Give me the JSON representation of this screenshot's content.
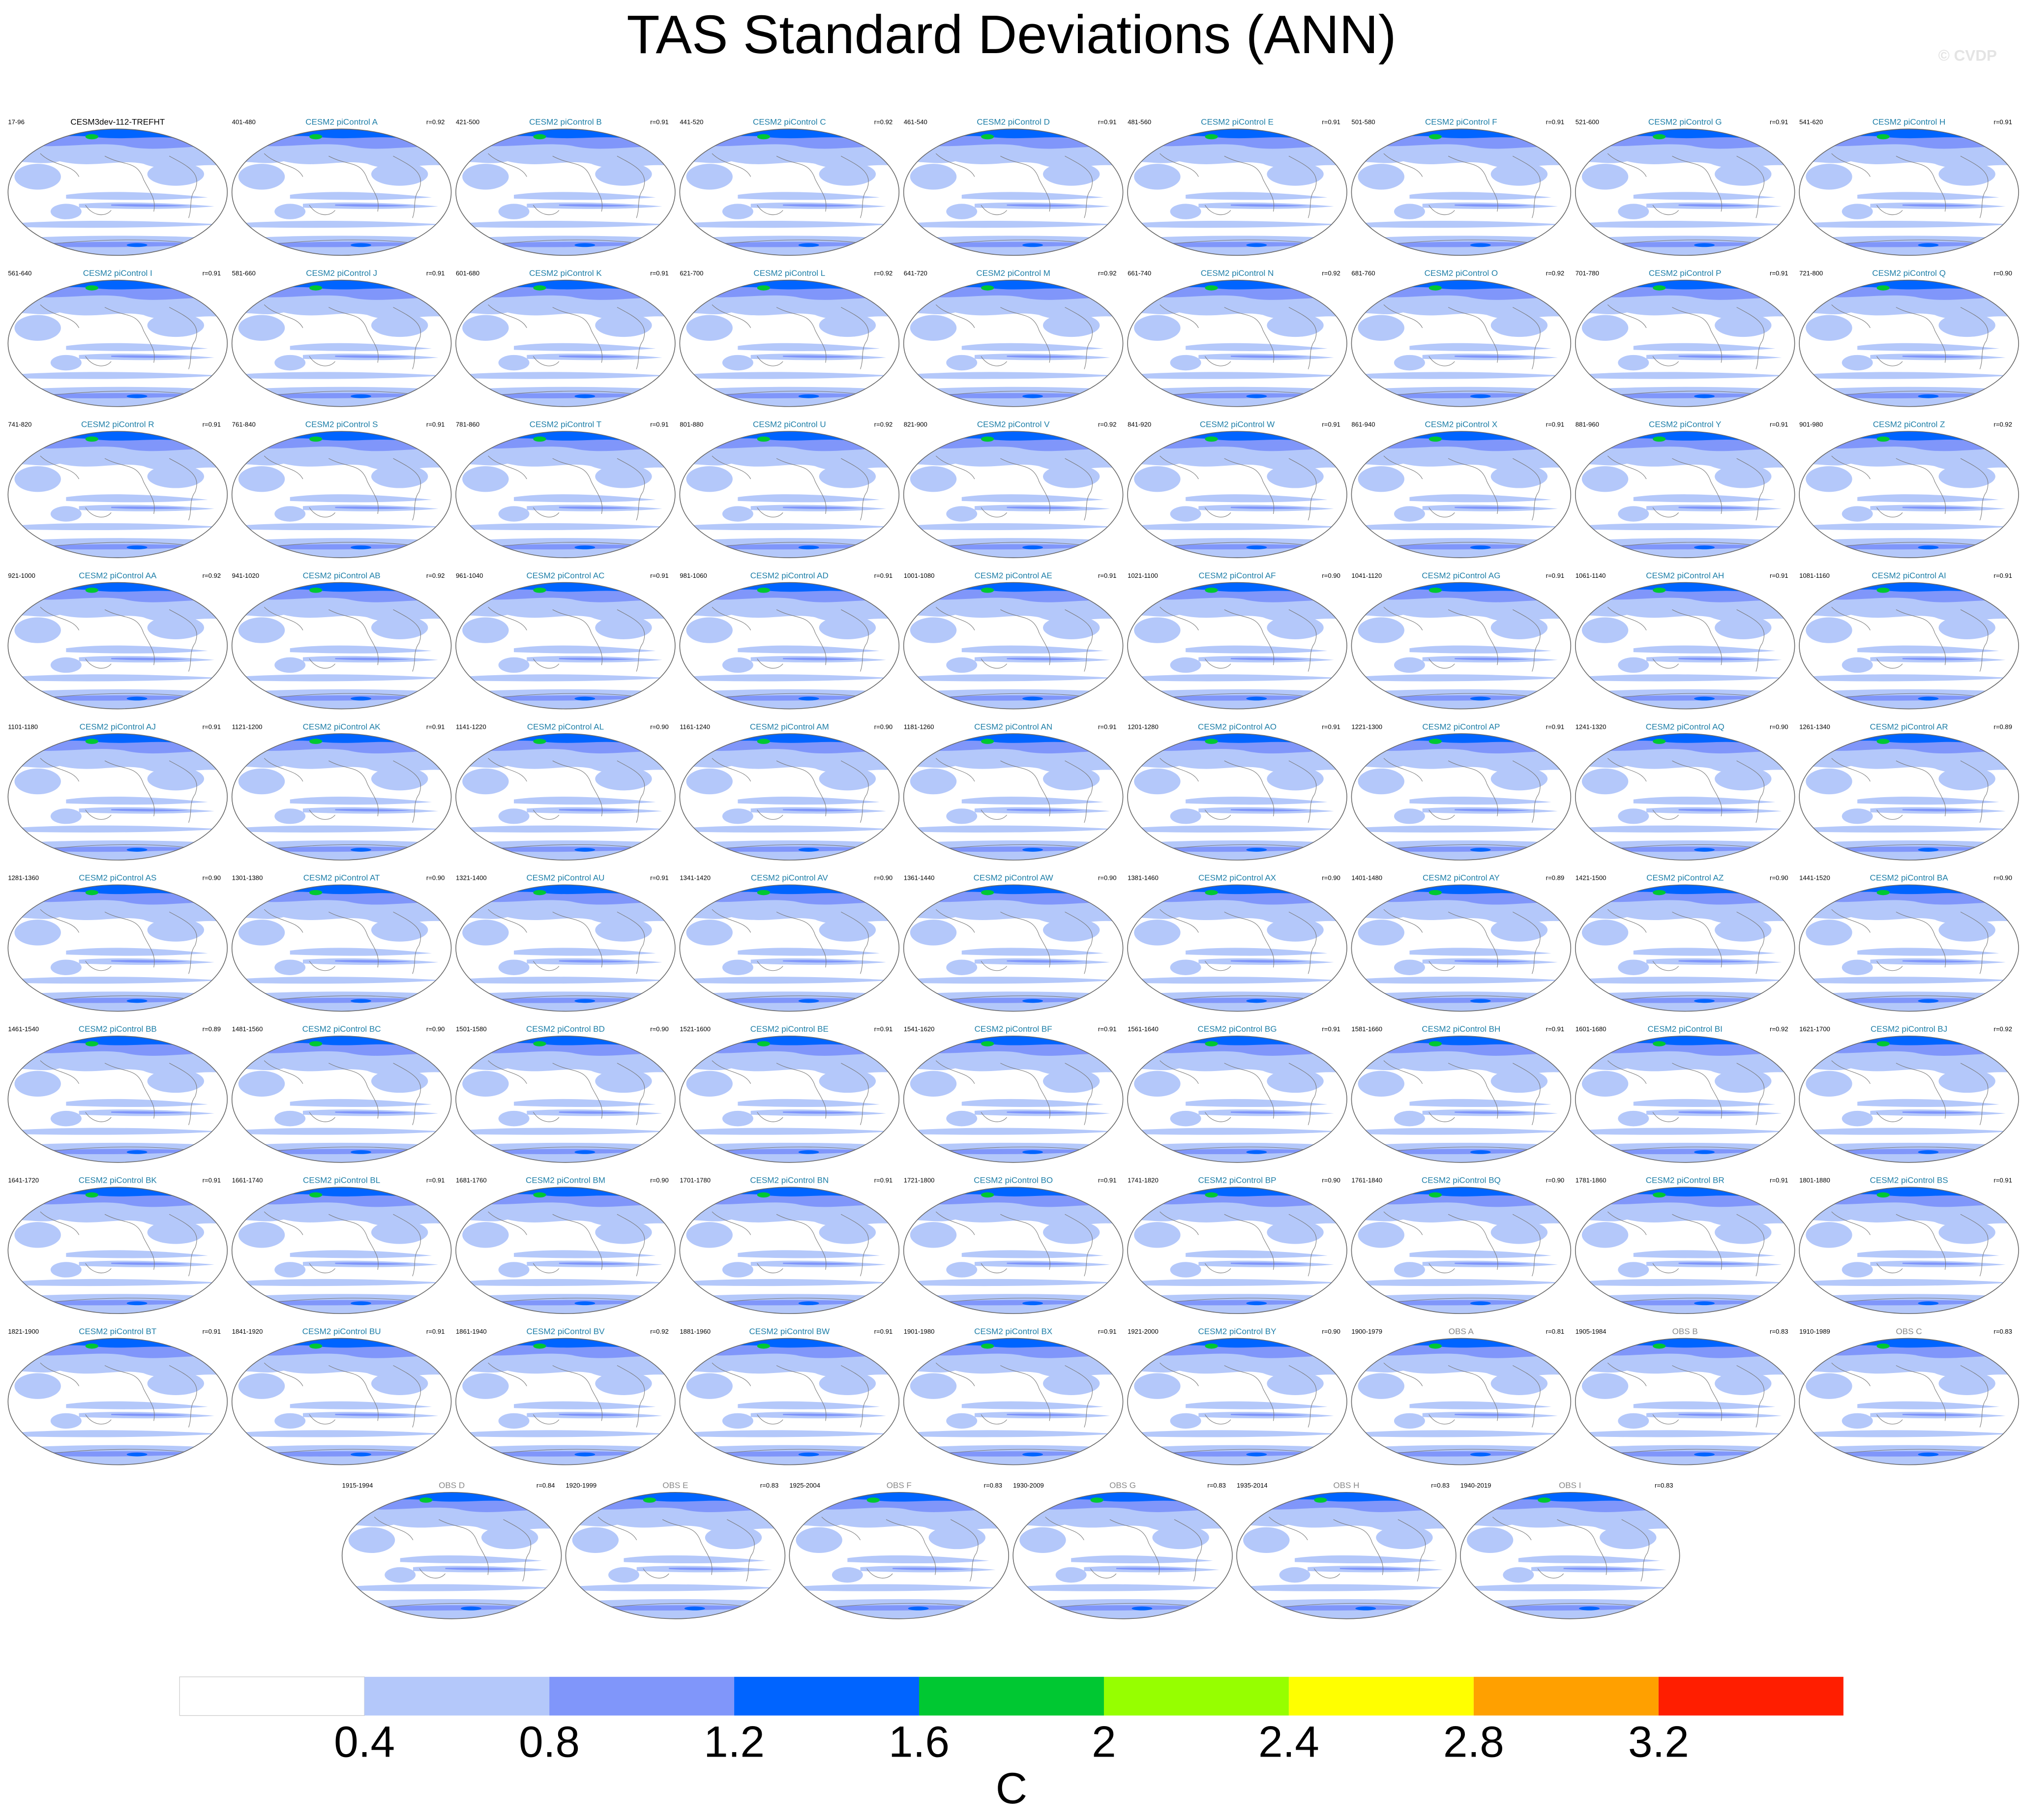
{
  "title": "TAS Standard Deviations (ANN)",
  "credit": "© CVDP",
  "reference": [
    "17-96",
    "CESM3dev-112-TREFHT"
  ],
  "models": [
    [
      "401-480",
      "CESM2 piControl A",
      "r=0.92"
    ],
    [
      "421-500",
      "CESM2 piControl B",
      "r=0.91"
    ],
    [
      "441-520",
      "CESM2 piControl C",
      "r=0.92"
    ],
    [
      "461-540",
      "CESM2 piControl D",
      "r=0.91"
    ],
    [
      "481-560",
      "CESM2 piControl E",
      "r=0.91"
    ],
    [
      "501-580",
      "CESM2 piControl F",
      "r=0.91"
    ],
    [
      "521-600",
      "CESM2 piControl G",
      "r=0.91"
    ],
    [
      "541-620",
      "CESM2 piControl H",
      "r=0.91"
    ],
    [
      "561-640",
      "CESM2 piControl I",
      "r=0.91"
    ],
    [
      "581-660",
      "CESM2 piControl J",
      "r=0.91"
    ],
    [
      "601-680",
      "CESM2 piControl K",
      "r=0.91"
    ],
    [
      "621-700",
      "CESM2 piControl L",
      "r=0.92"
    ],
    [
      "641-720",
      "CESM2 piControl M",
      "r=0.92"
    ],
    [
      "661-740",
      "CESM2 piControl N",
      "r=0.92"
    ],
    [
      "681-760",
      "CESM2 piControl O",
      "r=0.92"
    ],
    [
      "701-780",
      "CESM2 piControl P",
      "r=0.91"
    ],
    [
      "721-800",
      "CESM2 piControl Q",
      "r=0.90"
    ],
    [
      "741-820",
      "CESM2 piControl R",
      "r=0.91"
    ],
    [
      "761-840",
      "CESM2 piControl S",
      "r=0.91"
    ],
    [
      "781-860",
      "CESM2 piControl T",
      "r=0.91"
    ],
    [
      "801-880",
      "CESM2 piControl U",
      "r=0.92"
    ],
    [
      "821-900",
      "CESM2 piControl V",
      "r=0.92"
    ],
    [
      "841-920",
      "CESM2 piControl W",
      "r=0.91"
    ],
    [
      "861-940",
      "CESM2 piControl X",
      "r=0.91"
    ],
    [
      "881-960",
      "CESM2 piControl Y",
      "r=0.91"
    ],
    [
      "901-980",
      "CESM2 piControl Z",
      "r=0.92"
    ],
    [
      "921-1000",
      "CESM2 piControl AA",
      "r=0.92"
    ],
    [
      "941-1020",
      "CESM2 piControl AB",
      "r=0.92"
    ],
    [
      "961-1040",
      "CESM2 piControl AC",
      "r=0.91"
    ],
    [
      "981-1060",
      "CESM2 piControl AD",
      "r=0.91"
    ],
    [
      "1001-1080",
      "CESM2 piControl AE",
      "r=0.91"
    ],
    [
      "1021-1100",
      "CESM2 piControl AF",
      "r=0.90"
    ],
    [
      "1041-1120",
      "CESM2 piControl AG",
      "r=0.91"
    ],
    [
      "1061-1140",
      "CESM2 piControl AH",
      "r=0.91"
    ],
    [
      "1081-1160",
      "CESM2 piControl AI",
      "r=0.91"
    ],
    [
      "1101-1180",
      "CESM2 piControl AJ",
      "r=0.91"
    ],
    [
      "1121-1200",
      "CESM2 piControl AK",
      "r=0.91"
    ],
    [
      "1141-1220",
      "CESM2 piControl AL",
      "r=0.90"
    ],
    [
      "1161-1240",
      "CESM2 piControl AM",
      "r=0.90"
    ],
    [
      "1181-1260",
      "CESM2 piControl AN",
      "r=0.91"
    ],
    [
      "1201-1280",
      "CESM2 piControl AO",
      "r=0.91"
    ],
    [
      "1221-1300",
      "CESM2 piControl AP",
      "r=0.91"
    ],
    [
      "1241-1320",
      "CESM2 piControl AQ",
      "r=0.90"
    ],
    [
      "1261-1340",
      "CESM2 piControl AR",
      "r=0.89"
    ],
    [
      "1281-1360",
      "CESM2 piControl AS",
      "r=0.90"
    ],
    [
      "1301-1380",
      "CESM2 piControl AT",
      "r=0.90"
    ],
    [
      "1321-1400",
      "CESM2 piControl AU",
      "r=0.91"
    ],
    [
      "1341-1420",
      "CESM2 piControl AV",
      "r=0.90"
    ],
    [
      "1361-1440",
      "CESM2 piControl AW",
      "r=0.90"
    ],
    [
      "1381-1460",
      "CESM2 piControl AX",
      "r=0.90"
    ],
    [
      "1401-1480",
      "CESM2 piControl AY",
      "r=0.89"
    ],
    [
      "1421-1500",
      "CESM2 piControl AZ",
      "r=0.90"
    ],
    [
      "1441-1520",
      "CESM2 piControl BA",
      "r=0.90"
    ],
    [
      "1461-1540",
      "CESM2 piControl BB",
      "r=0.89"
    ],
    [
      "1481-1560",
      "CESM2 piControl BC",
      "r=0.90"
    ],
    [
      "1501-1580",
      "CESM2 piControl BD",
      "r=0.90"
    ],
    [
      "1521-1600",
      "CESM2 piControl BE",
      "r=0.91"
    ],
    [
      "1541-1620",
      "CESM2 piControl BF",
      "r=0.91"
    ],
    [
      "1561-1640",
      "CESM2 piControl BG",
      "r=0.91"
    ],
    [
      "1581-1660",
      "CESM2 piControl BH",
      "r=0.91"
    ],
    [
      "1601-1680",
      "CESM2 piControl BI",
      "r=0.92"
    ],
    [
      "1621-1700",
      "CESM2 piControl BJ",
      "r=0.92"
    ],
    [
      "1641-1720",
      "CESM2 piControl BK",
      "r=0.91"
    ],
    [
      "1661-1740",
      "CESM2 piControl BL",
      "r=0.91"
    ],
    [
      "1681-1760",
      "CESM2 piControl BM",
      "r=0.90"
    ],
    [
      "1701-1780",
      "CESM2 piControl BN",
      "r=0.91"
    ],
    [
      "1721-1800",
      "CESM2 piControl BO",
      "r=0.91"
    ],
    [
      "1741-1820",
      "CESM2 piControl BP",
      "r=0.90"
    ],
    [
      "1761-1840",
      "CESM2 piControl BQ",
      "r=0.90"
    ],
    [
      "1781-1860",
      "CESM2 piControl BR",
      "r=0.91"
    ],
    [
      "1801-1880",
      "CESM2 piControl BS",
      "r=0.91"
    ],
    [
      "1821-1900",
      "CESM2 piControl BT",
      "r=0.91"
    ],
    [
      "1841-1920",
      "CESM2 piControl BU",
      "r=0.91"
    ],
    [
      "1861-1940",
      "CESM2 piControl BV",
      "r=0.92"
    ],
    [
      "1881-1960",
      "CESM2 piControl BW",
      "r=0.91"
    ],
    [
      "1901-1980",
      "CESM2 piControl BX",
      "r=0.91"
    ],
    [
      "1921-2000",
      "CESM2 piControl BY",
      "r=0.90"
    ]
  ],
  "observations": [
    [
      "1900-1979",
      "OBS A",
      "r=0.81"
    ],
    [
      "1905-1984",
      "OBS B",
      "r=0.83"
    ],
    [
      "1910-1989",
      "OBS C",
      "r=0.83"
    ],
    [
      "1915-1994",
      "OBS D",
      "r=0.84"
    ],
    [
      "1920-1999",
      "OBS E",
      "r=0.83"
    ],
    [
      "1925-2004",
      "OBS F",
      "r=0.83"
    ],
    [
      "1930-2009",
      "OBS G",
      "r=0.83"
    ],
    [
      "1935-2014",
      "OBS H",
      "r=0.83"
    ],
    [
      "1940-2019",
      "OBS I",
      "r=0.83"
    ]
  ],
  "colorbar": {
    "colors": [
      "#ffffff",
      "#b4c8fa",
      "#8096fa",
      "#0064ff",
      "#00c832",
      "#96ff00",
      "#ffff00",
      "#ffa000",
      "#ff1e00"
    ],
    "ticks": [
      0.4,
      0.8,
      1.2,
      1.6,
      2,
      2.4,
      2.8,
      3.2
    ],
    "label": "C"
  }
}
